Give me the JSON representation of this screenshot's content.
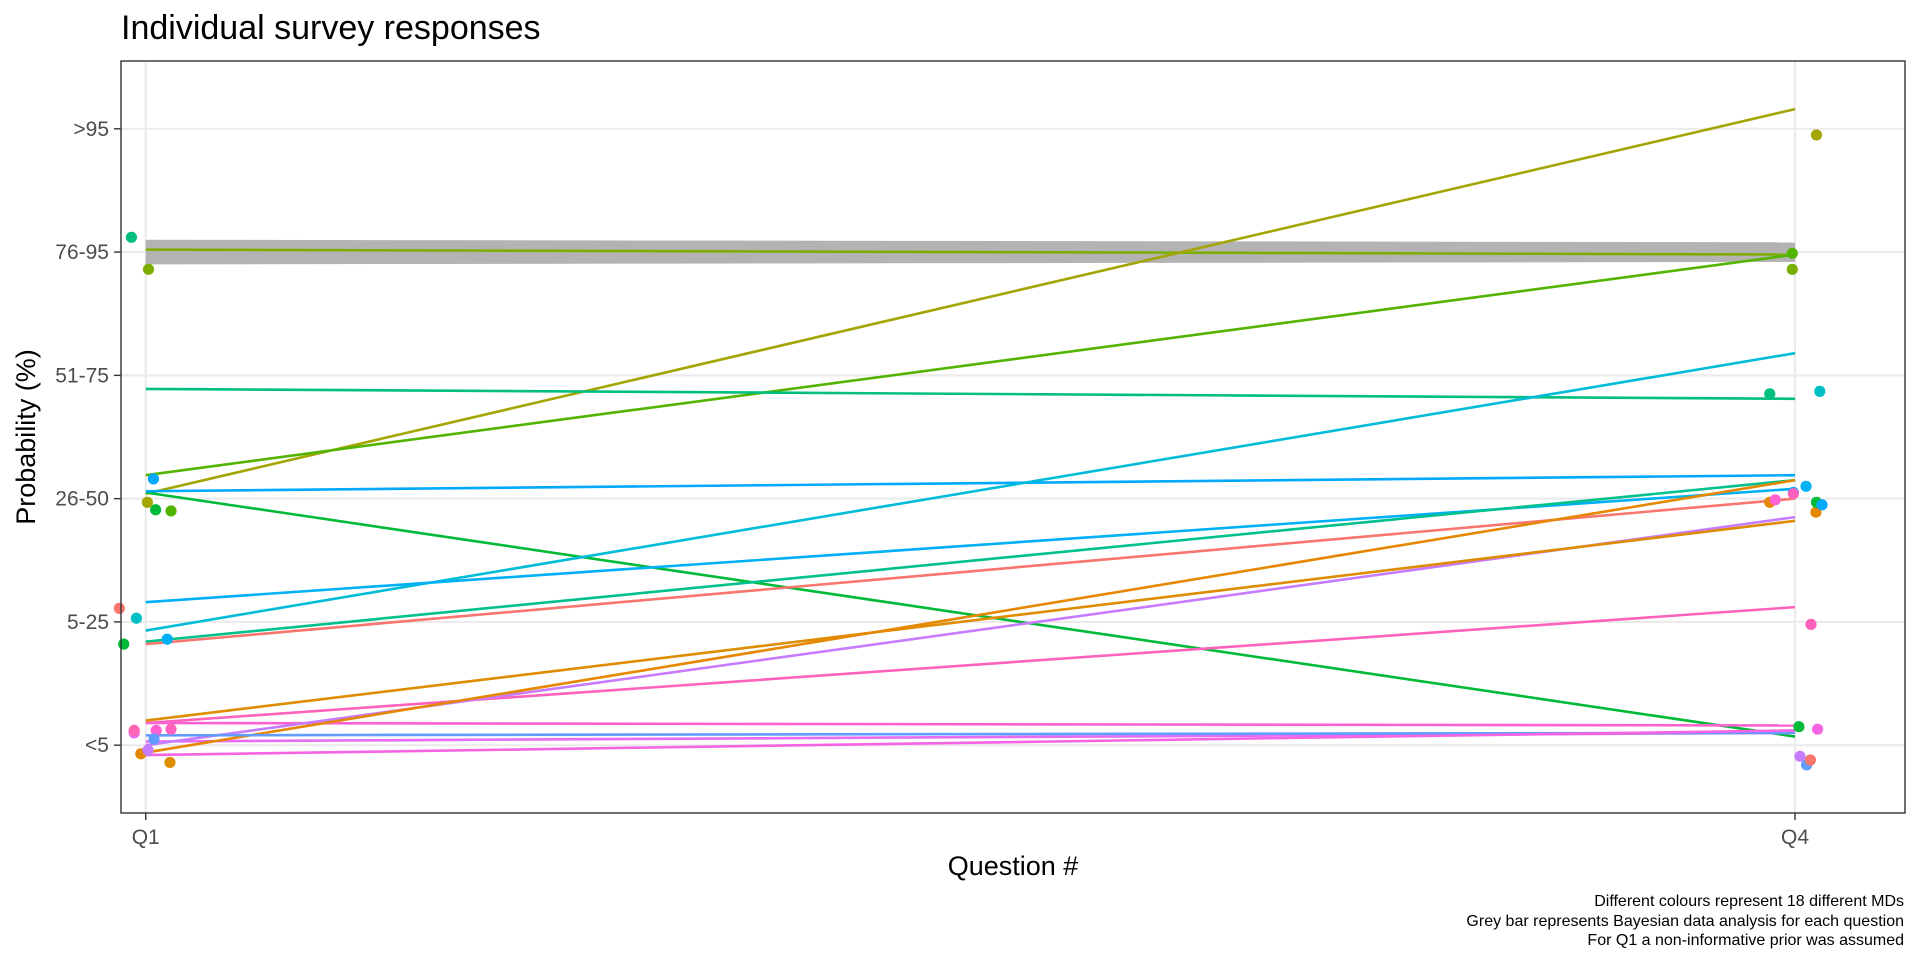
{
  "chart_data": {
    "type": "line",
    "title": "Individual survey responses",
    "xlabel": "Question #",
    "ylabel": "Probability (%)",
    "categories": [
      "Q1",
      "Q4"
    ],
    "y_ticks": [
      "<5",
      "5-25",
      "26-50",
      "51-75",
      "76-95",
      ">95"
    ],
    "ylim": [
      0.45,
      6.55
    ],
    "grid": true,
    "captions": [
      "Different colours represent 18 different MDs",
      "Grey bar represents Bayesian data analysis for each question",
      "For Q1 a non-informative prior was assumed"
    ],
    "bayesian_band": {
      "color": "#b3b3b3",
      "Q1": [
        4.9,
        5.1
      ],
      "Q4": [
        4.92,
        5.08
      ]
    },
    "series": [
      {
        "color": "#7CAE00",
        "values": [
          5.02,
          4.98
        ]
      },
      {
        "color": "#A3A500",
        "values": [
          3.04,
          6.16
        ]
      },
      {
        "color": "#00BA38",
        "values": [
          3.05,
          1.07
        ]
      },
      {
        "color": "#53B400",
        "values": [
          3.19,
          4.98
        ]
      },
      {
        "color": "#00BF7D",
        "values": [
          3.89,
          3.81
        ]
      },
      {
        "color": "#00A9FF",
        "values": [
          3.06,
          3.19
        ]
      },
      {
        "color": "#00BCD8",
        "values": [
          1.93,
          4.18
        ]
      },
      {
        "color": "#00B0F6",
        "values": [
          2.16,
          3.08
        ]
      },
      {
        "color": "#00C08B",
        "values": [
          1.84,
          3.15
        ]
      },
      {
        "color": "#F8766D",
        "values": [
          1.82,
          3.0
        ]
      },
      {
        "color": "#E76BF3",
        "values": [
          1.03,
          1.1
        ]
      },
      {
        "color": "#FF62BC",
        "values": [
          1.18,
          2.12
        ]
      },
      {
        "color": "#FD61D1",
        "values": [
          1.18,
          1.16
        ]
      },
      {
        "color": "#C77CFF",
        "values": [
          1.0,
          2.85
        ]
      },
      {
        "color": "#DE8C00",
        "values": [
          1.2,
          2.82
        ]
      },
      {
        "color": "#E58700",
        "values": [
          0.94,
          3.15
        ]
      },
      {
        "color": "#619CFF",
        "values": [
          1.08,
          1.1
        ]
      },
      {
        "color": "#F564E3",
        "values": [
          0.92,
          1.12
        ]
      }
    ],
    "jitter_points": [
      {
        "q": 1,
        "dx": -0.048,
        "value": 2.11,
        "color": "#F8766D"
      },
      {
        "q": 1,
        "dx": -0.04,
        "value": 1.82,
        "color": "#00BA38"
      },
      {
        "q": 1,
        "dx": -0.026,
        "value": 5.12,
        "color": "#00BF7D"
      },
      {
        "q": 1,
        "dx": -0.017,
        "value": 2.03,
        "color": "#00BFC4"
      },
      {
        "q": 1,
        "dx": -0.021,
        "value": 1.1,
        "color": "#E76BF3"
      },
      {
        "q": 1,
        "dx": -0.021,
        "value": 1.12,
        "color": "#FF64B0"
      },
      {
        "q": 1,
        "dx": -0.009,
        "value": 0.93,
        "color": "#E58700"
      },
      {
        "q": 1,
        "dx": 0.003,
        "value": 2.97,
        "color": "#A3A500"
      },
      {
        "q": 1,
        "dx": 0.005,
        "value": 4.86,
        "color": "#7CAE00"
      },
      {
        "q": 1,
        "dx": 0.014,
        "value": 3.16,
        "color": "#00A9FF"
      },
      {
        "q": 1,
        "dx": 0.018,
        "value": 2.91,
        "color": "#00BA38"
      },
      {
        "q": 1,
        "dx": 0.046,
        "value": 2.9,
        "color": "#53B400"
      },
      {
        "q": 1,
        "dx": 0.039,
        "value": 1.86,
        "color": "#00B0F6"
      },
      {
        "q": 1,
        "dx": 0.019,
        "value": 1.12,
        "color": "#FD61D1"
      },
      {
        "q": 1,
        "dx": 0.015,
        "value": 1.05,
        "color": "#619CFF"
      },
      {
        "q": 1,
        "dx": 0.046,
        "value": 1.13,
        "color": "#FF62BC"
      },
      {
        "q": 1,
        "dx": 0.044,
        "value": 0.86,
        "color": "#DE8C00"
      },
      {
        "q": 1,
        "dx": 0.004,
        "value": 0.96,
        "color": "#C77CFF"
      },
      {
        "q": 4,
        "dx": -0.046,
        "value": 3.85,
        "color": "#00BF7D"
      },
      {
        "q": 4,
        "dx": -0.046,
        "value": 2.97,
        "color": "#E58700"
      },
      {
        "q": 4,
        "dx": -0.036,
        "value": 2.99,
        "color": "#FD61D1"
      },
      {
        "q": 4,
        "dx": -0.003,
        "value": 3.05,
        "color": "#00A9FF"
      },
      {
        "q": 4,
        "dx": -0.003,
        "value": 3.04,
        "color": "#FF62BC"
      },
      {
        "q": 4,
        "dx": -0.005,
        "value": 4.99,
        "color": "#53B400"
      },
      {
        "q": 4,
        "dx": -0.005,
        "value": 4.86,
        "color": "#7CAE00"
      },
      {
        "q": 4,
        "dx": 0.007,
        "value": 1.15,
        "color": "#00BA38"
      },
      {
        "q": 4,
        "dx": 0.009,
        "value": 0.91,
        "color": "#C77CFF"
      },
      {
        "q": 4,
        "dx": 0.02,
        "value": 3.1,
        "color": "#00B0F6"
      },
      {
        "q": 4,
        "dx": 0.021,
        "value": 0.84,
        "color": "#619CFF"
      },
      {
        "q": 4,
        "dx": 0.028,
        "value": 0.88,
        "color": "#F8766D"
      },
      {
        "q": 4,
        "dx": 0.029,
        "value": 1.98,
        "color": "#FF62BC"
      },
      {
        "q": 4,
        "dx": 0.039,
        "value": 5.95,
        "color": "#A3A500"
      },
      {
        "q": 4,
        "dx": 0.038,
        "value": 2.89,
        "color": "#E58700"
      },
      {
        "q": 4,
        "dx": 0.039,
        "value": 2.97,
        "color": "#00BA38"
      },
      {
        "q": 4,
        "dx": 0.041,
        "value": 1.13,
        "color": "#F564E3"
      },
      {
        "q": 4,
        "dx": 0.045,
        "value": 3.87,
        "color": "#00BFC4"
      },
      {
        "q": 4,
        "dx": 0.049,
        "value": 2.95,
        "color": "#00A9FF"
      }
    ]
  }
}
